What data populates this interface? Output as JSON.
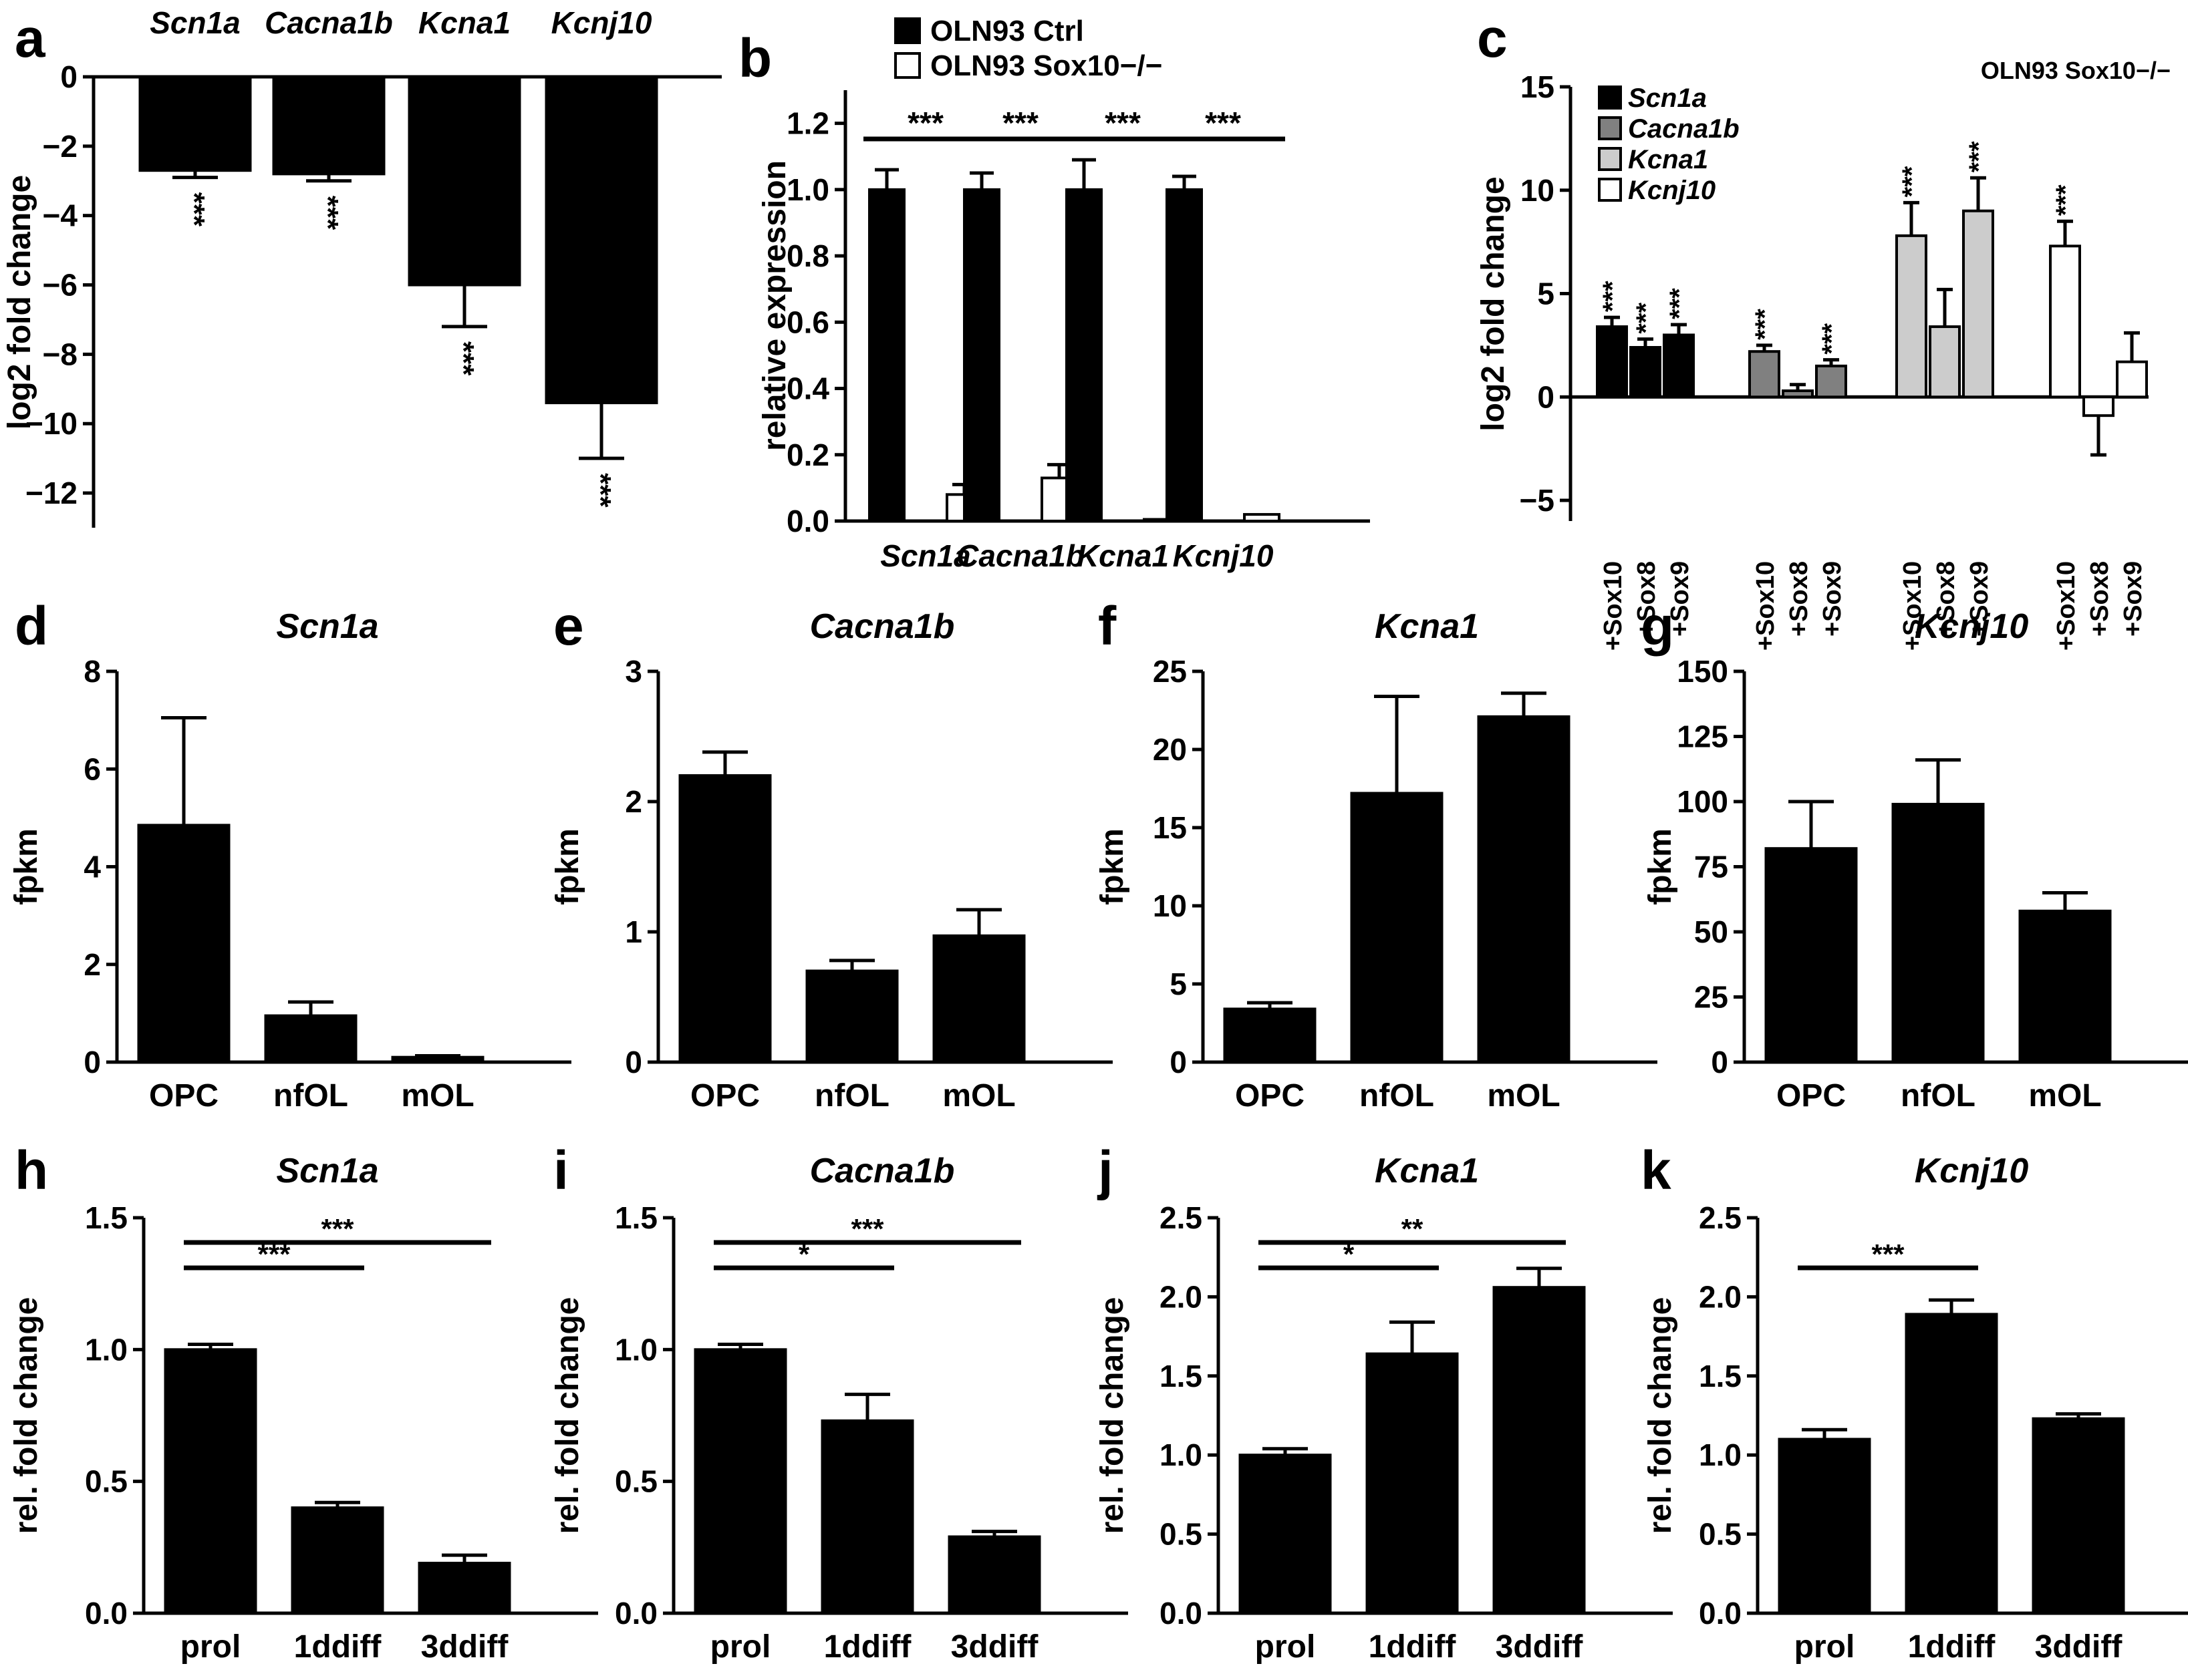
{
  "chart_data": [
    {
      "panel": "a",
      "type": "bar",
      "categories": [
        "Scn1a",
        "Cacna1b",
        "Kcna1",
        "Kcnj10"
      ],
      "categories_italic": true,
      "categories_position": "top",
      "values": [
        -2.7,
        -2.8,
        -6.0,
        -9.4
      ],
      "errors": [
        0.2,
        0.2,
        1.2,
        1.6
      ],
      "significance": [
        "***",
        "***",
        "***",
        "***"
      ],
      "ylabel": "log2 fold change",
      "ylim": [
        -13,
        0
      ],
      "yticks": [
        "0",
        "−2",
        "−4",
        "−6",
        "−8",
        "−10",
        "−12"
      ],
      "title": ""
    },
    {
      "panel": "b",
      "type": "bar",
      "categories": [
        "Scn1a",
        "Cacna1b",
        "Kcna1",
        "Kcnj10"
      ],
      "categories_italic": true,
      "series": [
        {
          "name": "OLN93 Ctrl",
          "fill": "#000000",
          "values": [
            1.0,
            1.0,
            1.0,
            1.0
          ],
          "errors": [
            0.06,
            0.05,
            0.09,
            0.04
          ]
        },
        {
          "name": "OLN93 Sox10−/−",
          "fill": "#ffffff",
          "values": [
            0.08,
            0.13,
            0.005,
            0.02
          ],
          "errors": [
            0.03,
            0.04,
            0.0,
            0.0
          ]
        }
      ],
      "significance": [
        "***",
        "***",
        "***",
        "***"
      ],
      "ylabel": "relative expression",
      "ylim": [
        0,
        1.3
      ],
      "yticks": [
        "0.0",
        "0.2",
        "0.4",
        "0.6",
        "0.8",
        "1.0",
        "1.2"
      ],
      "legend": "top"
    },
    {
      "panel": "c",
      "type": "bar",
      "annotation": "OLN93 Sox10−/−",
      "groups": [
        {
          "name": "Scn1a",
          "fill": "#000000",
          "labels": [
            "+Sox10",
            "+Sox8",
            "+Sox9"
          ],
          "values": [
            3.4,
            2.4,
            3.0
          ],
          "errors": [
            0.45,
            0.4,
            0.5
          ],
          "significance": [
            "***",
            "***",
            "***"
          ]
        },
        {
          "name": "Cacna1b",
          "fill": "#808080",
          "labels": [
            "+Sox10",
            "+Sox8",
            "+Sox9"
          ],
          "values": [
            2.2,
            0.3,
            1.5
          ],
          "errors": [
            0.3,
            0.3,
            0.3
          ],
          "significance": [
            "***",
            "",
            "***"
          ]
        },
        {
          "name": "Kcna1",
          "fill": "#cccccc",
          "labels": [
            "+Sox10",
            "+Sox8",
            "+Sox9"
          ],
          "values": [
            7.8,
            3.4,
            9.0
          ],
          "errors": [
            1.6,
            1.8,
            1.6
          ],
          "significance": [
            "***",
            "",
            "***"
          ]
        },
        {
          "name": "Kcnj10",
          "fill": "#ffffff",
          "labels": [
            "+Sox10",
            "+Sox8",
            "+Sox9"
          ],
          "values": [
            7.3,
            -0.9,
            1.7
          ],
          "errors": [
            1.2,
            1.9,
            1.4
          ],
          "significance": [
            "***",
            "",
            ""
          ]
        }
      ],
      "ylabel": "log2 fold change",
      "ylim": [
        -6,
        15
      ],
      "yticks": [
        "15",
        "10",
        "5",
        "0",
        "−5"
      ],
      "legend": "top-left"
    },
    {
      "panel": "d",
      "type": "bar",
      "title": "Scn1a",
      "categories": [
        "OPC",
        "nfOL",
        "mOL"
      ],
      "values": [
        4.85,
        0.95,
        0.1
      ],
      "errors": [
        2.2,
        0.28,
        0.03
      ],
      "ylabel": "fpkm",
      "ylim": [
        0,
        8
      ],
      "yticks": [
        "0",
        "2",
        "4",
        "6",
        "8"
      ]
    },
    {
      "panel": "e",
      "type": "bar",
      "title": "Cacna1b",
      "categories": [
        "OPC",
        "nfOL",
        "mOL"
      ],
      "values": [
        2.2,
        0.7,
        0.97
      ],
      "errors": [
        0.18,
        0.08,
        0.2
      ],
      "ylabel": "fpkm",
      "ylim": [
        0,
        3
      ],
      "yticks": [
        "0",
        "1",
        "2",
        "3"
      ]
    },
    {
      "panel": "f",
      "type": "bar",
      "title": "Kcna1",
      "categories": [
        "OPC",
        "nfOL",
        "mOL"
      ],
      "values": [
        3.4,
        17.2,
        22.1
      ],
      "errors": [
        0.4,
        6.2,
        1.5
      ],
      "ylabel": "fpkm",
      "ylim": [
        0,
        25
      ],
      "yticks": [
        "0",
        "5",
        "10",
        "15",
        "20",
        "25"
      ]
    },
    {
      "panel": "g",
      "type": "bar",
      "title": "Kcnj10",
      "categories": [
        "OPC",
        "nfOL",
        "mOL"
      ],
      "values": [
        82,
        99,
        58
      ],
      "errors": [
        18,
        17,
        7
      ],
      "ylabel": "fpkm",
      "ylim": [
        0,
        150
      ],
      "yticks": [
        "0",
        "25",
        "50",
        "75",
        "100",
        "125",
        "150"
      ]
    },
    {
      "panel": "h",
      "type": "bar",
      "title": "Scn1a",
      "categories": [
        "prol",
        "1ddiff",
        "3ddiff"
      ],
      "values": [
        1.0,
        0.4,
        0.19
      ],
      "errors": [
        0.02,
        0.02,
        0.03
      ],
      "significance": [
        {
          "from": 0,
          "to": 1,
          "label": "***"
        },
        {
          "from": 0,
          "to": 2,
          "label": "***"
        }
      ],
      "ylabel": "rel. fold change",
      "ylim": [
        0,
        1.5
      ],
      "yticks": [
        "0.0",
        "0.5",
        "1.0",
        "1.5"
      ]
    },
    {
      "panel": "i",
      "type": "bar",
      "title": "Cacna1b",
      "categories": [
        "prol",
        "1ddiff",
        "3ddiff"
      ],
      "values": [
        1.0,
        0.73,
        0.29
      ],
      "errors": [
        0.02,
        0.1,
        0.02
      ],
      "significance": [
        {
          "from": 0,
          "to": 1,
          "label": "*"
        },
        {
          "from": 0,
          "to": 2,
          "label": "***"
        }
      ],
      "ylabel": "rel. fold change",
      "ylim": [
        0,
        1.5
      ],
      "yticks": [
        "0.0",
        "0.5",
        "1.0",
        "1.5"
      ]
    },
    {
      "panel": "j",
      "type": "bar",
      "title": "Kcna1",
      "categories": [
        "prol",
        "1ddiff",
        "3ddiff"
      ],
      "values": [
        1.0,
        1.64,
        2.06
      ],
      "errors": [
        0.04,
        0.2,
        0.12
      ],
      "significance": [
        {
          "from": 0,
          "to": 1,
          "label": "*"
        },
        {
          "from": 0,
          "to": 2,
          "label": "**"
        }
      ],
      "ylabel": "rel. fold change",
      "ylim": [
        0,
        2.5
      ],
      "yticks": [
        "0.0",
        "0.5",
        "1.0",
        "1.5",
        "2.0",
        "2.5"
      ]
    },
    {
      "panel": "k",
      "type": "bar",
      "title": "Kcnj10",
      "categories": [
        "prol",
        "1ddiff",
        "3ddiff"
      ],
      "values": [
        1.1,
        1.89,
        1.23
      ],
      "errors": [
        0.06,
        0.09,
        0.03
      ],
      "significance": [
        {
          "from": 0,
          "to": 1,
          "label": "***"
        }
      ],
      "ylabel": "rel. fold change",
      "ylim": [
        0,
        2.5
      ],
      "yticks": [
        "0.0",
        "0.5",
        "1.0",
        "1.5",
        "2.0",
        "2.5"
      ]
    }
  ]
}
